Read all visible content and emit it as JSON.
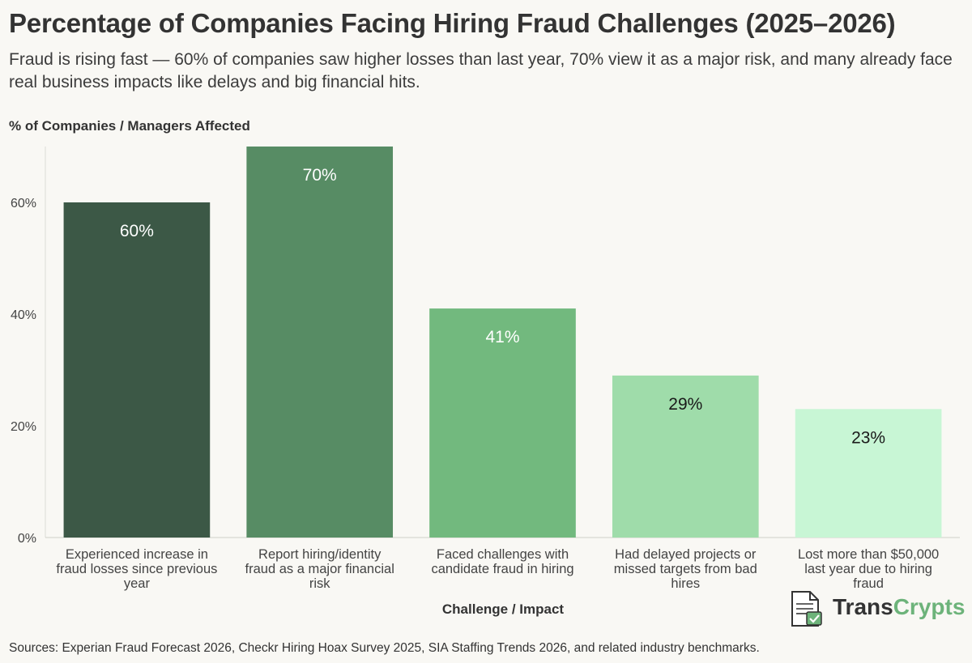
{
  "header": {
    "title": "Percentage of Companies Facing Hiring Fraud Challenges (2025–2026)",
    "subtitle": "Fraud is rising fast — 60% of companies saw higher losses than last year, 70% view it as a major risk, and many already face real business impacts like delays and big financial hits."
  },
  "chart_data": {
    "type": "bar",
    "title": "Percentage of Companies Facing Hiring Fraud Challenges (2025–2026)",
    "ylabel": "% of Companies / Managers Affected",
    "xlabel": "Challenge / Impact",
    "categories": [
      "Experienced increase in fraud losses since previous year",
      "Report hiring/identity fraud as a major financial risk",
      "Faced challenges with candidate fraud in hiring",
      "Had delayed projects or missed targets from bad hires",
      "Lost more than $50,000 last year due to hiring fraud"
    ],
    "category_lines": [
      [
        "Experienced increase in",
        "fraud losses since previous",
        "year"
      ],
      [
        "Report hiring/identity",
        "fraud as a major financial",
        "risk"
      ],
      [
        "Faced challenges with",
        "candidate fraud in hiring"
      ],
      [
        "Had delayed projects or",
        "missed targets from bad",
        "hires"
      ],
      [
        "Lost more than $50,000",
        "last year due to hiring",
        "fraud"
      ]
    ],
    "values": [
      60,
      70,
      41,
      29,
      23
    ],
    "data_labels": [
      "60%",
      "70%",
      "41%",
      "29%",
      "23%"
    ],
    "colors": [
      "#3c5846",
      "#578c64",
      "#72b97e",
      "#9fdcaa",
      "#c8f6d5"
    ],
    "label_colors": [
      "#ffffff",
      "#ffffff",
      "#ffffff",
      "#1a1a1a",
      "#1a1a1a"
    ],
    "ylim": [
      0,
      70
    ],
    "yticks": [
      0,
      20,
      40,
      60
    ],
    "ytick_labels": [
      "0%",
      "20%",
      "40%",
      "60%"
    ],
    "grid": false
  },
  "footer": {
    "source": "Sources: Experian Fraud Forecast 2026, Checkr Hiring Hoax Survey 2025, SIA Staffing Trends 2026, and related industry benchmarks."
  },
  "brand": {
    "name_part1": "Trans",
    "name_part2": "Crypts",
    "accent": "#6db37a"
  }
}
